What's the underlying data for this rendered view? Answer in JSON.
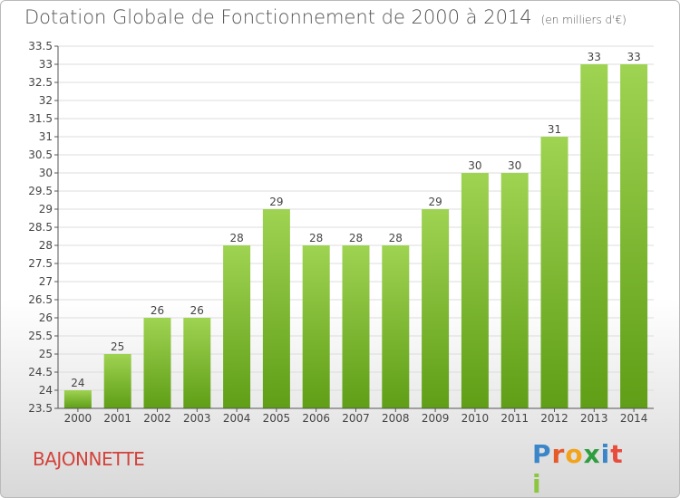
{
  "header": {
    "title": "Dotation Globale de Fonctionnement de 2000 à 2014",
    "subtitle": "(en milliers d'€)"
  },
  "footer": {
    "commune": "BAJONNETTE",
    "logo_text": "Proxiti",
    "logo_letters": [
      {
        "char": "P",
        "color": "#3a86c9"
      },
      {
        "char": "r",
        "color": "#e65a2a"
      },
      {
        "char": "o",
        "color": "#f2a31b"
      },
      {
        "char": "x",
        "color": "#2e9e3e"
      },
      {
        "char": "i",
        "color": "#3a86c9"
      },
      {
        "char": "t",
        "color": "#e84c3d"
      },
      {
        "char": "i",
        "color": "#8cc63f"
      }
    ]
  },
  "chart_data": {
    "type": "bar",
    "title": "Dotation Globale de Fonctionnement de 2000 à 2014",
    "subtitle": "(en milliers d'€)",
    "xlabel": "",
    "ylabel": "",
    "categories": [
      "2000",
      "2001",
      "2002",
      "2003",
      "2004",
      "2005",
      "2006",
      "2007",
      "2008",
      "2009",
      "2010",
      "2011",
      "2012",
      "2013",
      "2014"
    ],
    "values": [
      24,
      25,
      26,
      26,
      28,
      29,
      28,
      28,
      28,
      29,
      30,
      30,
      31,
      33,
      33
    ],
    "data_labels": [
      "24",
      "25",
      "26",
      "26",
      "28",
      "29",
      "28",
      "28",
      "28",
      "29",
      "30",
      "30",
      "31",
      "33",
      "33"
    ],
    "ylim": [
      23.5,
      33.5
    ],
    "yticks": [
      23.5,
      24,
      24.5,
      25,
      25.5,
      26,
      26.5,
      27,
      27.5,
      28,
      28.5,
      29,
      29.5,
      30,
      30.5,
      31,
      31.5,
      32,
      32.5,
      33,
      33.5
    ],
    "ytick_labels": [
      "23.5",
      "24",
      "24.5",
      "25",
      "25.5",
      "26",
      "26.5",
      "27",
      "27.5",
      "28",
      "28.5",
      "29",
      "29.5",
      "30",
      "30.5",
      "31",
      "31.5",
      "32",
      "32.5",
      "33",
      "33.5"
    ],
    "grid": true,
    "bar_color_top": "#9fd352",
    "bar_color_bottom": "#5f9e16",
    "grid_color": "#dcdcdc",
    "axis_color": "#555555"
  }
}
